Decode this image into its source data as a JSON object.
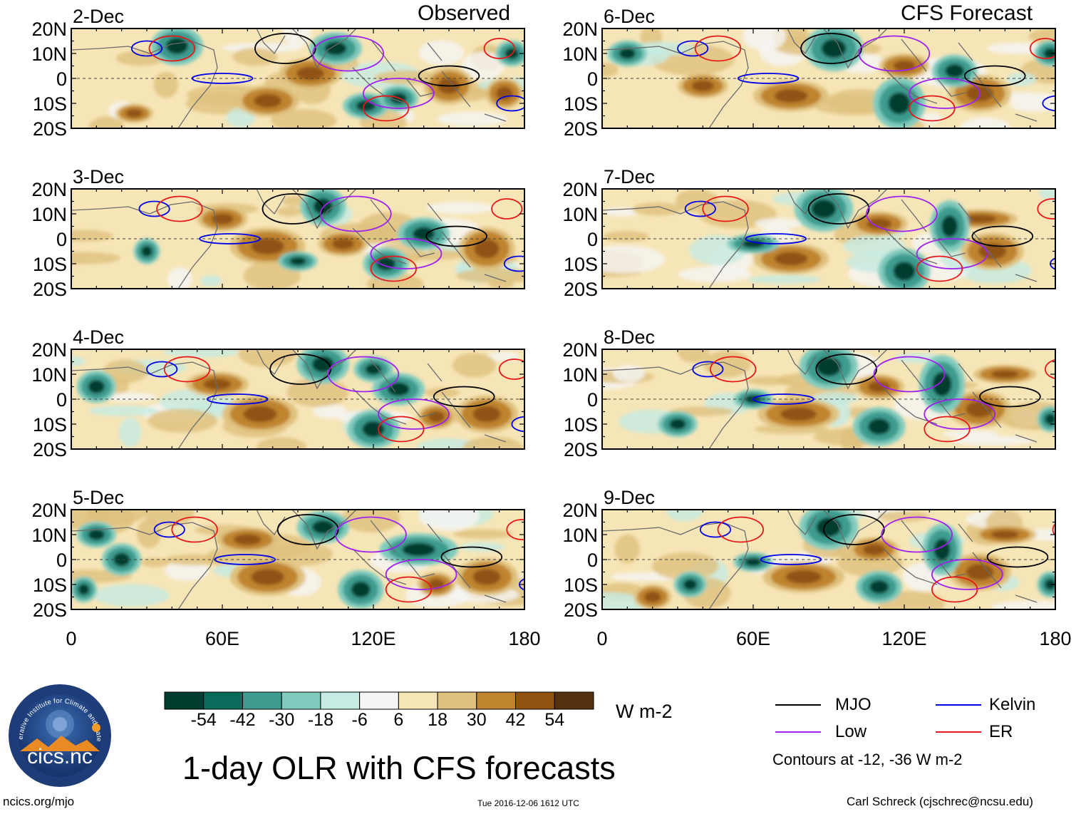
{
  "title": "1-day OLR with CFS forecasts",
  "left_header": "Observed",
  "right_header": "CFS Forecast",
  "units": "W m-2",
  "footer": {
    "left": "ncics.org/mjo",
    "center": "Tue 2016-12-06 1612 UTC",
    "right": "Carl Schreck (cjschrec@ncsu.edu)"
  },
  "logo": {
    "name": "cics.nc",
    "ring_text": "Cooperative Institute for Climate and Satellites"
  },
  "colorbar": {
    "labels": [
      "-54",
      "-42",
      "-30",
      "-18",
      "-6",
      "6",
      "18",
      "30",
      "42",
      "54"
    ],
    "colors": [
      "#003d2e",
      "#0b6b5b",
      "#3d9c8f",
      "#80cbbd",
      "#c5ebe4",
      "#f5f5f5",
      "#f6e5b7",
      "#dfc17d",
      "#c0842f",
      "#8f5213",
      "#553110"
    ]
  },
  "legend": {
    "items": [
      {
        "label": "MJO",
        "color": "#000000"
      },
      {
        "label": "Kelvin",
        "color": "#0000e8"
      },
      {
        "label": "Low",
        "color": "#a020f0"
      },
      {
        "label": "ER",
        "color": "#e81818"
      }
    ],
    "note": "Contours at -12, -36 W m-2"
  },
  "chart_data": {
    "type": "heatmap",
    "variable": "OLR anomaly",
    "lon_range": [
      0,
      180
    ],
    "lat_range": [
      -20,
      20
    ],
    "x_ticks": [
      "0",
      "60E",
      "120E",
      "180"
    ],
    "y_ticks": [
      "20N",
      "10N",
      "0",
      "10S",
      "20S"
    ],
    "levels": [
      -54,
      -42,
      -30,
      -18,
      -6,
      6,
      18,
      30,
      42,
      54
    ],
    "panels": [
      {
        "date": "2-Dec",
        "column": "Observed",
        "wet": [
          [
            42,
            13,
            8,
            6
          ],
          [
            105,
            12,
            8,
            5
          ],
          [
            117,
            -11,
            7,
            4
          ],
          [
            130,
            -8,
            6,
            4
          ],
          [
            175,
            10,
            5,
            4
          ]
        ],
        "dry": [
          [
            25,
            -14,
            6,
            3
          ],
          [
            78,
            -9,
            10,
            5
          ],
          [
            150,
            -3,
            8,
            6
          ],
          [
            172,
            -6,
            6,
            5
          ],
          [
            95,
            2,
            10,
            5
          ]
        ]
      },
      {
        "date": "6-Dec",
        "column": "CFS Forecast",
        "wet": [
          [
            92,
            12,
            9,
            7
          ],
          [
            118,
            -10,
            8,
            8
          ],
          [
            140,
            3,
            7,
            5
          ],
          [
            10,
            10,
            6,
            4
          ],
          [
            178,
            10,
            5,
            4
          ]
        ],
        "dry": [
          [
            75,
            -7,
            12,
            5
          ],
          [
            150,
            -6,
            10,
            6
          ],
          [
            120,
            5,
            8,
            4
          ],
          [
            40,
            -3,
            8,
            4
          ]
        ]
      },
      {
        "date": "3-Dec",
        "column": "Observed",
        "wet": [
          [
            100,
            13,
            7,
            6
          ],
          [
            90,
            -9,
            6,
            3
          ],
          [
            125,
            -10,
            7,
            5
          ],
          [
            140,
            2,
            8,
            5
          ],
          [
            30,
            -5,
            4,
            4
          ]
        ],
        "dry": [
          [
            78,
            -3,
            12,
            6
          ],
          [
            165,
            -4,
            9,
            7
          ],
          [
            60,
            8,
            8,
            4
          ],
          [
            108,
            -2,
            8,
            4
          ]
        ]
      },
      {
        "date": "7-Dec",
        "column": "CFS Forecast",
        "wet": [
          [
            88,
            12,
            9,
            7
          ],
          [
            120,
            -13,
            8,
            7
          ],
          [
            138,
            5,
            6,
            8
          ],
          [
            60,
            -2,
            8,
            3
          ]
        ],
        "dry": [
          [
            75,
            -8,
            12,
            5
          ],
          [
            155,
            -5,
            10,
            6
          ],
          [
            110,
            6,
            9,
            4
          ],
          [
            150,
            8,
            12,
            3
          ]
        ]
      },
      {
        "date": "4-Dec",
        "column": "Observed",
        "wet": [
          [
            100,
            14,
            8,
            6
          ],
          [
            120,
            -12,
            8,
            6
          ],
          [
            130,
            4,
            8,
            5
          ],
          [
            10,
            5,
            6,
            5
          ],
          [
            120,
            12,
            6,
            4
          ]
        ],
        "dry": [
          [
            75,
            -6,
            12,
            6
          ],
          [
            165,
            -6,
            10,
            6
          ],
          [
            58,
            6,
            10,
            4
          ],
          [
            145,
            -7,
            6,
            4
          ]
        ]
      },
      {
        "date": "8-Dec",
        "column": "CFS Forecast",
        "wet": [
          [
            90,
            13,
            9,
            7
          ],
          [
            110,
            -11,
            8,
            6
          ],
          [
            135,
            6,
            7,
            9
          ],
          [
            30,
            -10,
            6,
            4
          ],
          [
            60,
            0,
            6,
            3
          ],
          [
            178,
            -8,
            4,
            4
          ]
        ],
        "dry": [
          [
            78,
            -6,
            13,
            5
          ],
          [
            150,
            -4,
            10,
            6
          ],
          [
            110,
            5,
            8,
            4
          ],
          [
            160,
            10,
            10,
            3
          ]
        ]
      },
      {
        "date": "5-Dec",
        "column": "Observed",
        "wet": [
          [
            100,
            13,
            8,
            5
          ],
          [
            115,
            -12,
            7,
            6
          ],
          [
            138,
            4,
            12,
            5
          ],
          [
            20,
            0,
            6,
            5
          ],
          [
            5,
            -12,
            4,
            4
          ],
          [
            10,
            10,
            6,
            4
          ]
        ],
        "dry": [
          [
            78,
            -7,
            12,
            6
          ],
          [
            165,
            -7,
            10,
            6
          ],
          [
            70,
            8,
            10,
            4
          ],
          [
            145,
            -10,
            6,
            4
          ]
        ]
      },
      {
        "date": "9-Dec",
        "column": "CFS Forecast",
        "wet": [
          [
            90,
            13,
            9,
            7
          ],
          [
            110,
            -11,
            7,
            5
          ],
          [
            135,
            4,
            6,
            8
          ],
          [
            35,
            -10,
            5,
            4
          ],
          [
            60,
            -1,
            6,
            3
          ],
          [
            178,
            -10,
            4,
            4
          ]
        ],
        "dry": [
          [
            80,
            -7,
            13,
            5
          ],
          [
            150,
            -5,
            10,
            6
          ],
          [
            108,
            4,
            8,
            4
          ],
          [
            160,
            10,
            10,
            3
          ],
          [
            20,
            -15,
            6,
            4
          ]
        ]
      }
    ]
  }
}
